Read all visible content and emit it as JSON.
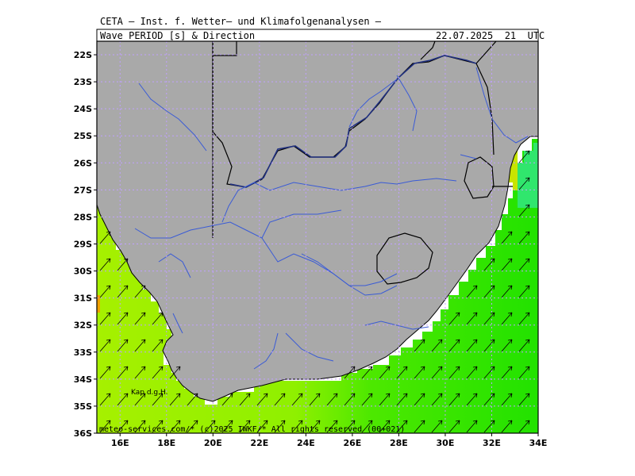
{
  "header": {
    "institute": "CETA — Inst. f. Wetter— und Klimafolgenanalysen —",
    "field": "Wave_PERIOD_[s]_&_Direction",
    "valid_time": "22.07.2025  21  UTC"
  },
  "footer": {
    "credit": "meteo-services.com/* (c)2025 IWKF/* All rights reserved (00+021)"
  },
  "map": {
    "label_cape": "Kap d.g.H.",
    "lat_labels": [
      "22S",
      "23S",
      "24S",
      "25S",
      "26S",
      "27S",
      "28S",
      "29S",
      "30S",
      "31S",
      "32S",
      "33S",
      "34S",
      "35S",
      "36S"
    ],
    "lon_labels": [
      "16E",
      "18E",
      "20E",
      "22E",
      "24E",
      "26E",
      "28E",
      "30E",
      "32E",
      "34E"
    ],
    "colors": {
      "land": "#a9a9a9",
      "sea_yellowgreen": "#a6f000",
      "sea_green": "#22e200",
      "sea_mint": "#33e680",
      "sea_olive": "#d0e000",
      "rivers": "#3a5bd6",
      "borders": "#000000",
      "grid": "#c0a0ff"
    },
    "arrow_direction": "north-east"
  }
}
